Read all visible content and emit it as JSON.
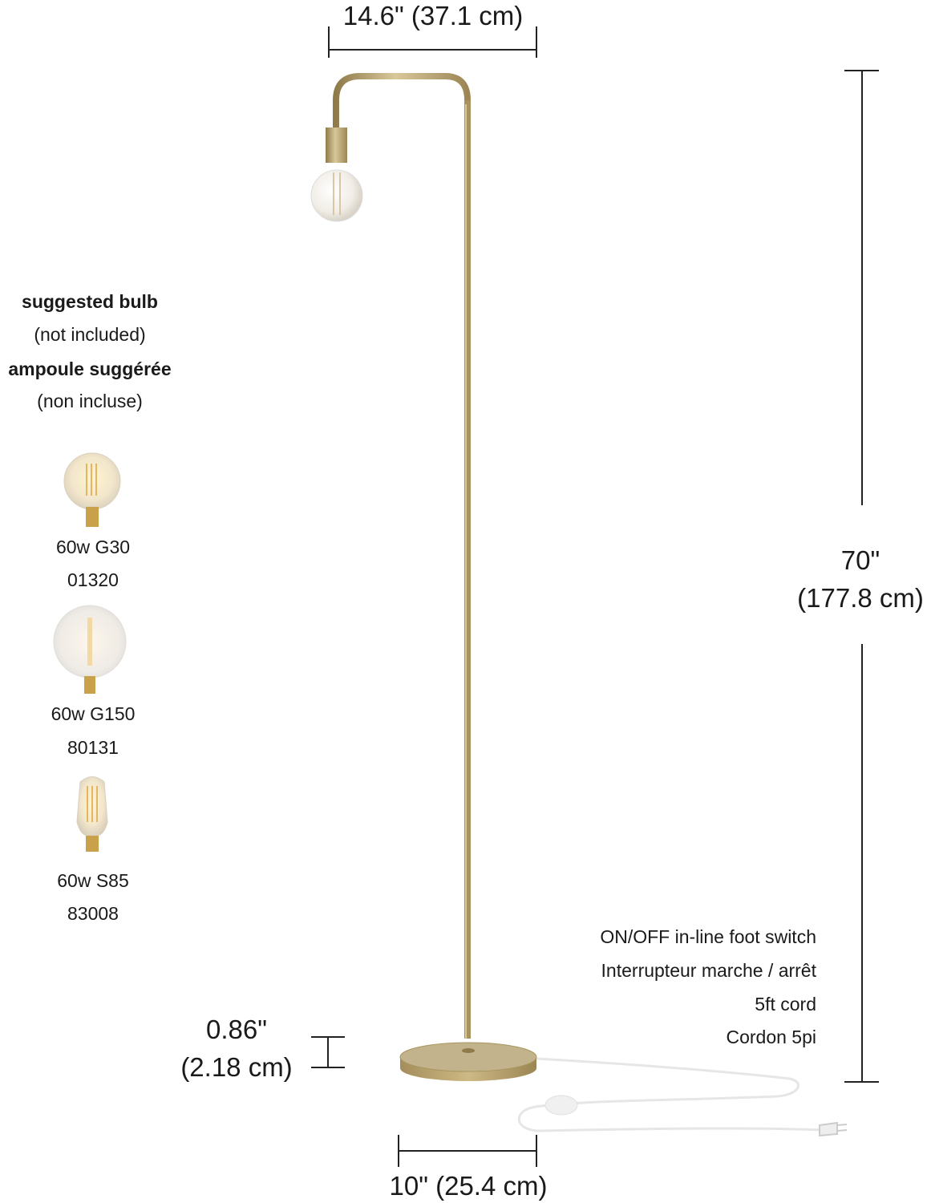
{
  "dimensions": {
    "width": "14.6\" (37.1 cm)",
    "height_in": "70\"",
    "height_cm": "(177.8 cm)",
    "base_height_in": "0.86\"",
    "base_height_cm": "(2.18 cm)",
    "base_diameter": "10\" (25.4 cm)"
  },
  "bulb_info": {
    "heading_en": "suggested bulb",
    "note_en": "(not included)",
    "heading_fr": "ampoule suggérée",
    "note_fr": "(non incluse)",
    "bulbs": [
      {
        "name": "60w G30",
        "code": "01320"
      },
      {
        "name": "60w G150",
        "code": "80131"
      },
      {
        "name": "60w S85",
        "code": "83008"
      }
    ]
  },
  "switch_info": {
    "line1": "ON/OFF in-line foot switch",
    "line2": "Interrupteur marche / arrêt",
    "line3": "5ft cord",
    "line4": "Cordon 5pi"
  },
  "colors": {
    "brass": "#b59e6a",
    "dimension_line": "#222222"
  }
}
